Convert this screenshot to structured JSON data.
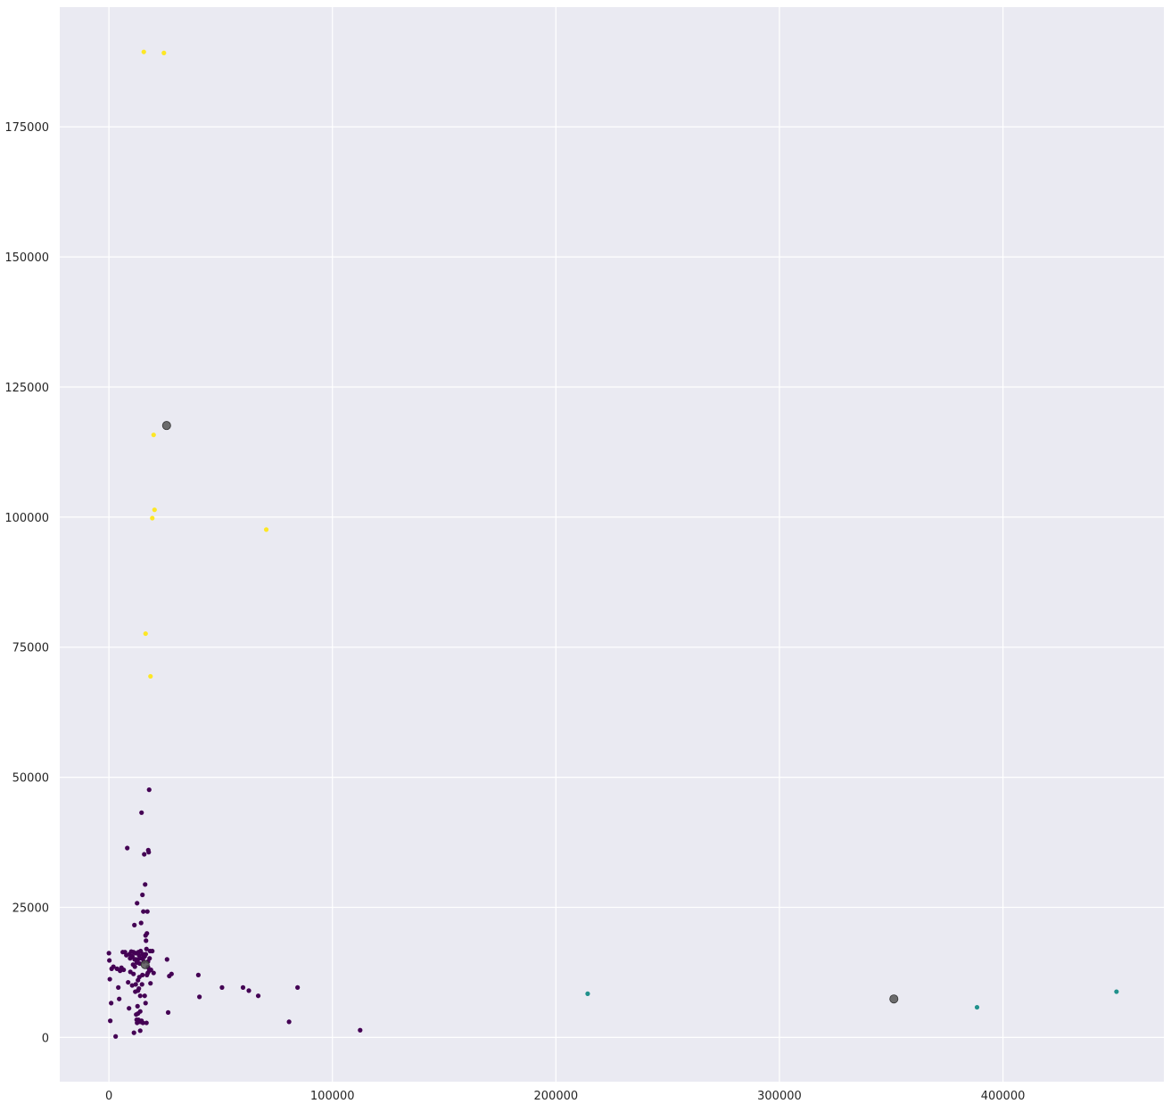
{
  "chart_data": {
    "type": "scatter",
    "title": "",
    "xlabel": "",
    "ylabel": "",
    "xlim": [
      -22000,
      472000
    ],
    "ylim": [
      -8500,
      198000
    ],
    "grid": true,
    "x_ticks": [
      {
        "value": 0,
        "label": "0"
      },
      {
        "value": 100000,
        "label": "100000"
      },
      {
        "value": 200000,
        "label": "200000"
      },
      {
        "value": 300000,
        "label": "300000"
      },
      {
        "value": 400000,
        "label": "400000"
      }
    ],
    "y_ticks": [
      {
        "value": 0,
        "label": "0"
      },
      {
        "value": 25000,
        "label": "25000"
      },
      {
        "value": 50000,
        "label": "50000"
      },
      {
        "value": 75000,
        "label": "75000"
      },
      {
        "value": 100000,
        "label": "100000"
      },
      {
        "value": 125000,
        "label": "125000"
      },
      {
        "value": 150000,
        "label": "150000"
      },
      {
        "value": 175000,
        "label": "175000"
      }
    ],
    "colors": {
      "background": "#eaeaf2",
      "grid": "#ffffff",
      "cluster_0": "#440154",
      "cluster_1": "#21918c",
      "cluster_2": "#fde725",
      "centroid": "#555555"
    },
    "series": [
      {
        "color": "#440154",
        "points": [
          [
            0,
            16200
          ],
          [
            200,
            14800
          ],
          [
            400,
            11200
          ],
          [
            600,
            3200
          ],
          [
            1000,
            6600
          ],
          [
            1200,
            13200
          ],
          [
            2000,
            13600
          ],
          [
            3000,
            200
          ],
          [
            3600,
            13200
          ],
          [
            4200,
            9600
          ],
          [
            4600,
            7400
          ],
          [
            5000,
            12800
          ],
          [
            5600,
            13400
          ],
          [
            6200,
            16400
          ],
          [
            6600,
            13000
          ],
          [
            7200,
            16400
          ],
          [
            7800,
            15800
          ],
          [
            8200,
            36400
          ],
          [
            8600,
            10600
          ],
          [
            9000,
            5600
          ],
          [
            9200,
            16000
          ],
          [
            9600,
            12600
          ],
          [
            10000,
            16500
          ],
          [
            10400,
            10000
          ],
          [
            10800,
            14000
          ],
          [
            11000,
            16400
          ],
          [
            11400,
            21600
          ],
          [
            11600,
            13600
          ],
          [
            11800,
            8800
          ],
          [
            12000,
            16200
          ],
          [
            12200,
            4400
          ],
          [
            12400,
            3400
          ],
          [
            12600,
            25800
          ],
          [
            12800,
            6000
          ],
          [
            13000,
            15000
          ],
          [
            13200,
            16400
          ],
          [
            13400,
            9400
          ],
          [
            13600,
            11600
          ],
          [
            13800,
            14200
          ],
          [
            14000,
            3000
          ],
          [
            14200,
            16600
          ],
          [
            14400,
            22000
          ],
          [
            14600,
            43200
          ],
          [
            14800,
            10200
          ],
          [
            15000,
            27400
          ],
          [
            15200,
            16000
          ],
          [
            15400,
            24200
          ],
          [
            15600,
            14600
          ],
          [
            15800,
            35200
          ],
          [
            16000,
            15600
          ],
          [
            16200,
            29400
          ],
          [
            16400,
            19600
          ],
          [
            16600,
            18600
          ],
          [
            16800,
            17000
          ],
          [
            17000,
            20000
          ],
          [
            17200,
            24200
          ],
          [
            17400,
            12400
          ],
          [
            17600,
            36000
          ],
          [
            17800,
            35600
          ],
          [
            18000,
            47600
          ],
          [
            18200,
            15200
          ],
          [
            18400,
            16600
          ],
          [
            18600,
            10400
          ],
          [
            18800,
            13000
          ],
          [
            11200,
            900
          ],
          [
            12600,
            2800
          ],
          [
            13200,
            3400
          ],
          [
            14000,
            1300
          ],
          [
            14600,
            3200
          ],
          [
            15200,
            2800
          ],
          [
            16400,
            6600
          ],
          [
            16800,
            2800
          ],
          [
            19400,
            16600
          ],
          [
            20000,
            12400
          ],
          [
            16000,
            8000
          ],
          [
            15000,
            12000
          ],
          [
            14000,
            8000
          ],
          [
            13000,
            11000
          ],
          [
            12000,
            15000
          ],
          [
            17000,
            12000
          ],
          [
            17500,
            13500
          ],
          [
            13500,
            15800
          ],
          [
            14500,
            15200
          ],
          [
            15500,
            15400
          ],
          [
            16500,
            16000
          ],
          [
            17500,
            14600
          ],
          [
            18000,
            12800
          ],
          [
            12500,
            14400
          ],
          [
            11500,
            15000
          ],
          [
            10500,
            15600
          ],
          [
            9500,
            15200
          ],
          [
            11000,
            12200
          ],
          [
            12000,
            10200
          ],
          [
            13000,
            9000
          ],
          [
            14000,
            5000
          ],
          [
            13000,
            4600
          ],
          [
            26000,
            15000
          ],
          [
            26500,
            4800
          ],
          [
            27000,
            11800
          ],
          [
            28000,
            12200
          ],
          [
            40000,
            12000
          ],
          [
            40500,
            7800
          ],
          [
            50600,
            9600
          ],
          [
            60000,
            9600
          ],
          [
            62600,
            9000
          ],
          [
            66800,
            8000
          ],
          [
            80600,
            3000
          ],
          [
            84400,
            9600
          ],
          [
            112400,
            1400
          ]
        ]
      },
      {
        "color": "#21918c",
        "points": [
          [
            214200,
            8400
          ],
          [
            388400,
            5800
          ],
          [
            450800,
            8800
          ]
        ]
      },
      {
        "color": "#fde725",
        "points": [
          [
            15600,
            189400
          ],
          [
            24600,
            189200
          ],
          [
            20000,
            115800
          ],
          [
            20400,
            101400
          ],
          [
            19400,
            99800
          ],
          [
            70400,
            97600
          ],
          [
            16400,
            77600
          ],
          [
            18600,
            69400
          ]
        ]
      }
    ],
    "centroids": [
      [
        25800,
        117600
      ],
      [
        351200,
        7400
      ],
      [
        16200,
        14000
      ]
    ]
  }
}
